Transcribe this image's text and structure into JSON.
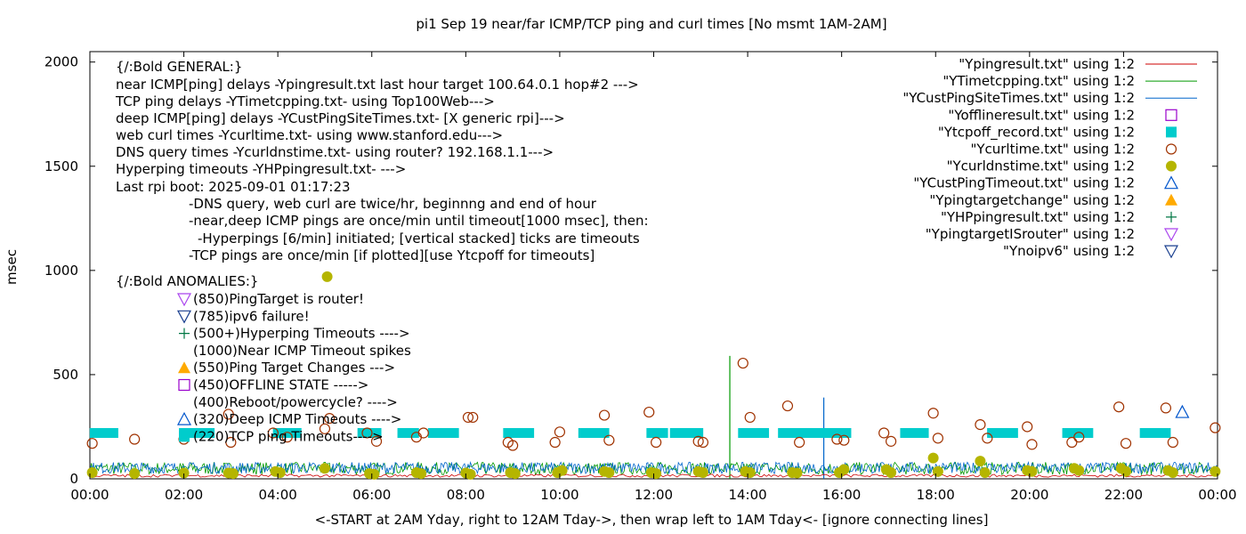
{
  "chart_data": {
    "type": "scatter",
    "title": "pi1 Sep 19  near/far ICMP/TCP ping and curl times [No msmt 1AM-2AM]",
    "xlabel": "<-START at 2AM Yday, right to 12AM Tday->, then wrap left to 1AM Tday<- [ignore connecting lines]",
    "ylabel": "msec",
    "xlim": [
      0,
      24
    ],
    "ylim": [
      0,
      2050
    ],
    "x_ticks": [
      {
        "v": 0,
        "label": "00:00"
      },
      {
        "v": 2,
        "label": "02:00"
      },
      {
        "v": 4,
        "label": "04:00"
      },
      {
        "v": 6,
        "label": "06:00"
      },
      {
        "v": 8,
        "label": "08:00"
      },
      {
        "v": 10,
        "label": "10:00"
      },
      {
        "v": 12,
        "label": "12:00"
      },
      {
        "v": 14,
        "label": "14:00"
      },
      {
        "v": 16,
        "label": "16:00"
      },
      {
        "v": 18,
        "label": "18:00"
      },
      {
        "v": 20,
        "label": "20:00"
      },
      {
        "v": 22,
        "label": "22:00"
      },
      {
        "v": 24,
        "label": "00:00"
      }
    ],
    "y_ticks": [
      {
        "v": 0,
        "label": "0"
      },
      {
        "v": 500,
        "label": "500"
      },
      {
        "v": 1000,
        "label": "1000"
      },
      {
        "v": 1500,
        "label": "1500"
      },
      {
        "v": 2000,
        "label": "2000"
      }
    ],
    "annotations": [
      "{/:Bold GENERAL:}",
      "near ICMP[ping] delays -Ypingresult.txt last hour target 100.64.0.1 hop#2 --->",
      "TCP ping delays -YTimetcpping.txt- using Top100Web--->",
      "deep ICMP[ping] delays -YCustPingSiteTimes.txt- [X generic rpi]--->",
      "web curl times -Ycurltime.txt- using www.stanford.edu--->",
      "DNS query times -Ycurldnstime.txt- using router? 192.168.1.1--->",
      "Hyperping timeouts -YHPpingresult.txt- --->",
      "Last rpi boot: 2025-09-01 01:17:23",
      "-DNS query, web curl are twice/hr, beginnng and end of hour",
      "-near,deep ICMP pings are once/min until timeout[1000 msec], then:",
      "-Hyperpings [6/min] initiated; [vertical stacked] ticks are timeouts",
      "-TCP pings are once/min [if plotted][use Ytcpoff for timeouts]",
      "{/:Bold ANOMALIES:}"
    ],
    "anomaly_legend": [
      {
        "marker": "tri-down-purple",
        "text": "(850)PingTarget is router!"
      },
      {
        "marker": "tri-down-navy",
        "text": "(785)ipv6 failure!"
      },
      {
        "marker": "plus-green",
        "text": "(500+)Hyperping Timeouts ---->"
      },
      {
        "marker": "none",
        "text": "(1000)Near ICMP Timeout spikes"
      },
      {
        "marker": "tri-up-orange",
        "text": "(550)Ping Target Changes --->"
      },
      {
        "marker": "square-purple",
        "text": "(450)OFFLINE STATE ----->"
      },
      {
        "marker": "none",
        "text": "(400)Reboot/powercycle? ---->"
      },
      {
        "marker": "tri-up-blue",
        "text": "(320)Deep ICMP Timeouts ---->"
      },
      {
        "marker": "square-cyan",
        "text": "(220)TCP ping Timeouts---->"
      }
    ],
    "legend_position": "top-right",
    "series": [
      {
        "name": "\"Ypingresult.txt\" using 1:2",
        "style": "line",
        "color": "#cc0000",
        "note": "near ICMP, ~10-20 ms noise all day"
      },
      {
        "name": "\"YTimetcpping.txt\" using 1:2",
        "style": "line",
        "color": "#009900",
        "spikes": [
          {
            "x": 13.62,
            "y": 590
          },
          {
            "x": 2.0,
            "y": 60
          }
        ]
      },
      {
        "name": "\"YCustPingSiteTimes.txt\" using 1:2",
        "style": "line",
        "color": "#0066cc",
        "spikes": [
          {
            "x": 15.62,
            "y": 390
          }
        ]
      },
      {
        "name": "\"Yofflineresult.txt\" using 1:2",
        "style": "square-open",
        "color": "#9900cc",
        "points": []
      },
      {
        "name": "\"Ytcpoff_record.txt\" using 1:2",
        "style": "square-filled",
        "color": "#00cccc",
        "segments": [
          [
            0.1,
            0.5
          ],
          [
            2.0,
            2.55
          ],
          [
            4.0,
            4.4
          ],
          [
            5.8,
            6.1
          ],
          [
            6.65,
            6.9
          ],
          [
            7.3,
            7.75
          ],
          [
            8.9,
            9.35
          ],
          [
            10.5,
            10.95
          ],
          [
            11.95,
            12.2
          ],
          [
            12.45,
            12.95
          ],
          [
            13.9,
            14.35
          ],
          [
            14.75,
            14.98
          ],
          [
            15.15,
            15.45
          ],
          [
            15.6,
            16.1
          ],
          [
            17.35,
            17.75
          ],
          [
            19.2,
            19.65
          ],
          [
            20.8,
            21.25
          ],
          [
            22.45,
            22.9
          ]
        ],
        "y": 220
      },
      {
        "name": "\"Ycurltime.txt\" using 1:2",
        "style": "circle-open",
        "color": "#a03200",
        "points": [
          [
            0.05,
            170
          ],
          [
            0.95,
            190
          ],
          [
            2.0,
            190
          ],
          [
            2.95,
            310
          ],
          [
            3.0,
            175
          ],
          [
            3.9,
            220
          ],
          [
            4.2,
            200
          ],
          [
            5.0,
            240
          ],
          [
            5.1,
            290
          ],
          [
            5.9,
            220
          ],
          [
            6.1,
            180
          ],
          [
            6.95,
            200
          ],
          [
            7.1,
            220
          ],
          [
            8.05,
            295
          ],
          [
            8.15,
            295
          ],
          [
            8.9,
            175
          ],
          [
            9.0,
            160
          ],
          [
            9.9,
            175
          ],
          [
            10.0,
            225
          ],
          [
            10.95,
            305
          ],
          [
            11.05,
            185
          ],
          [
            11.9,
            320
          ],
          [
            12.05,
            175
          ],
          [
            12.95,
            180
          ],
          [
            13.05,
            175
          ],
          [
            13.9,
            555
          ],
          [
            14.05,
            295
          ],
          [
            14.85,
            350
          ],
          [
            15.1,
            175
          ],
          [
            15.9,
            190
          ],
          [
            16.05,
            185
          ],
          [
            16.9,
            220
          ],
          [
            17.05,
            180
          ],
          [
            17.95,
            315
          ],
          [
            18.05,
            195
          ],
          [
            18.95,
            260
          ],
          [
            19.1,
            195
          ],
          [
            19.95,
            250
          ],
          [
            20.05,
            165
          ],
          [
            20.9,
            175
          ],
          [
            21.05,
            200
          ],
          [
            21.9,
            345
          ],
          [
            22.05,
            170
          ],
          [
            22.9,
            340
          ],
          [
            23.05,
            175
          ],
          [
            23.95,
            245
          ]
        ]
      },
      {
        "name": "\"Ycurldnstime.txt\" using 1:2",
        "style": "circle-filled",
        "color": "#b5b500",
        "points": [
          [
            0.05,
            30
          ],
          [
            0.95,
            25
          ],
          [
            2.0,
            28
          ],
          [
            2.95,
            28
          ],
          [
            3.05,
            25
          ],
          [
            3.95,
            35
          ],
          [
            4.05,
            30
          ],
          [
            5.0,
            50
          ],
          [
            5.05,
            970
          ],
          [
            5.95,
            25
          ],
          [
            6.05,
            22
          ],
          [
            6.95,
            30
          ],
          [
            7.05,
            25
          ],
          [
            8.0,
            28
          ],
          [
            8.1,
            22
          ],
          [
            8.95,
            30
          ],
          [
            9.05,
            25
          ],
          [
            9.95,
            30
          ],
          [
            10.05,
            40
          ],
          [
            10.95,
            35
          ],
          [
            11.05,
            30
          ],
          [
            11.95,
            30
          ],
          [
            12.05,
            25
          ],
          [
            12.95,
            35
          ],
          [
            13.05,
            30
          ],
          [
            13.95,
            35
          ],
          [
            14.05,
            30
          ],
          [
            14.95,
            30
          ],
          [
            15.05,
            28
          ],
          [
            15.95,
            30
          ],
          [
            16.05,
            45
          ],
          [
            16.95,
            45
          ],
          [
            17.05,
            30
          ],
          [
            17.95,
            100
          ],
          [
            18.05,
            35
          ],
          [
            18.95,
            85
          ],
          [
            19.05,
            30
          ],
          [
            19.95,
            40
          ],
          [
            20.05,
            35
          ],
          [
            20.95,
            50
          ],
          [
            21.05,
            40
          ],
          [
            21.95,
            50
          ],
          [
            22.05,
            35
          ],
          [
            22.95,
            40
          ],
          [
            23.05,
            30
          ],
          [
            23.95,
            35
          ]
        ]
      },
      {
        "name": "\"YCustPingTimeout.txt\" using 1:2",
        "style": "tri-up-open",
        "color": "#0055cc",
        "points": [
          [
            23.25,
            320
          ]
        ]
      },
      {
        "name": "\"Ypingtargetchange\" using 1:2",
        "style": "tri-up-filled",
        "color": "#ffaa00",
        "points": []
      },
      {
        "name": "\"YHPpingresult.txt\" using 1:2",
        "style": "plus",
        "color": "#007744",
        "points": []
      },
      {
        "name": "\"YpingtargetISrouter\" using 1:2",
        "style": "tri-down-open",
        "color": "#aa44ee",
        "points": []
      },
      {
        "name": "\"Ynoipv6\" using 1:2",
        "style": "tri-down-open",
        "color": "#1a3f8f",
        "points": []
      }
    ]
  }
}
